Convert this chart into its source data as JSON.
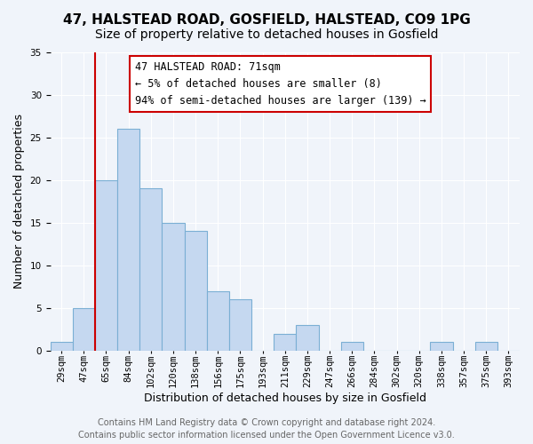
{
  "title": "47, HALSTEAD ROAD, GOSFIELD, HALSTEAD, CO9 1PG",
  "subtitle": "Size of property relative to detached houses in Gosfield",
  "xlabel": "Distribution of detached houses by size in Gosfield",
  "ylabel": "Number of detached properties",
  "bin_labels": [
    "29sqm",
    "47sqm",
    "65sqm",
    "84sqm",
    "102sqm",
    "120sqm",
    "138sqm",
    "156sqm",
    "175sqm",
    "193sqm",
    "211sqm",
    "229sqm",
    "247sqm",
    "266sqm",
    "284sqm",
    "302sqm",
    "320sqm",
    "338sqm",
    "357sqm",
    "375sqm",
    "393sqm"
  ],
  "bar_values": [
    1,
    5,
    20,
    26,
    19,
    15,
    14,
    7,
    6,
    0,
    2,
    3,
    0,
    1,
    0,
    0,
    0,
    1,
    0,
    1,
    0
  ],
  "bar_color": "#c5d8f0",
  "bar_edge_color": "#7bafd4",
  "vline_x_index": 2,
  "vline_color": "#cc0000",
  "annotation_text": "47 HALSTEAD ROAD: 71sqm\n← 5% of detached houses are smaller (8)\n94% of semi-detached houses are larger (139) →",
  "annotation_box_color": "#ffffff",
  "annotation_box_edge_color": "#cc0000",
  "ylim": [
    0,
    35
  ],
  "yticks": [
    0,
    5,
    10,
    15,
    20,
    25,
    30,
    35
  ],
  "footer_line1": "Contains HM Land Registry data © Crown copyright and database right 2024.",
  "footer_line2": "Contains public sector information licensed under the Open Government Licence v3.0.",
  "title_fontsize": 11,
  "subtitle_fontsize": 10,
  "axis_label_fontsize": 9,
  "tick_fontsize": 7.5,
  "annotation_fontsize": 8.5,
  "footer_fontsize": 7,
  "background_color": "#f0f4fa"
}
